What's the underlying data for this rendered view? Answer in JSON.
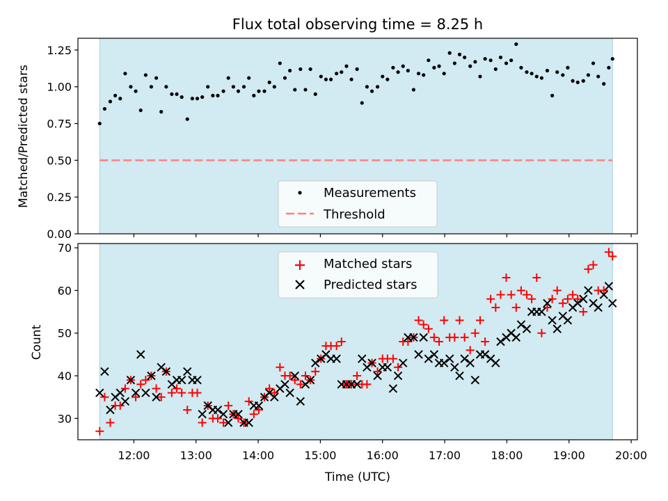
{
  "chart_data": [
    {
      "type": "scatter",
      "title": "Flux total observing time = 8.25 h",
      "xlabel": "",
      "ylabel": "Matched/Predicted stars",
      "ylim": [
        0,
        1.33
      ],
      "yticks": [
        "0.00",
        "0.25",
        "0.50",
        "0.75",
        "1.00",
        "1.25"
      ],
      "shaded_span_utc_hours": [
        11.45,
        19.7
      ],
      "shade_color": "#add8e6",
      "legend_position": "lower center",
      "series": [
        {
          "name": "Measurements",
          "marker": "dot",
          "color": "#000000",
          "x": [
            11.45,
            11.53,
            11.62,
            11.7,
            11.78,
            11.86,
            11.95,
            12.03,
            12.11,
            12.19,
            12.28,
            12.36,
            12.44,
            12.52,
            12.61,
            12.69,
            12.77,
            12.86,
            12.94,
            13.02,
            13.1,
            13.19,
            13.27,
            13.35,
            13.44,
            13.52,
            13.6,
            13.68,
            13.77,
            13.85,
            13.93,
            14.01,
            14.1,
            14.18,
            14.26,
            14.35,
            14.43,
            14.51,
            14.59,
            14.68,
            14.76,
            14.84,
            14.92,
            15.01,
            15.09,
            15.17,
            15.26,
            15.34,
            15.42,
            15.5,
            15.59,
            15.67,
            15.75,
            15.83,
            15.92,
            16.0,
            16.08,
            16.17,
            16.25,
            16.33,
            16.41,
            16.5,
            16.58,
            16.66,
            16.74,
            16.83,
            16.91,
            16.99,
            17.08,
            17.16,
            17.24,
            17.32,
            17.41,
            17.49,
            17.57,
            17.65,
            17.74,
            17.82,
            17.9,
            17.99,
            18.07,
            18.15,
            18.23,
            18.32,
            18.4,
            18.48,
            18.56,
            18.65,
            18.73,
            18.81,
            18.9,
            18.98,
            19.06,
            19.14,
            19.23,
            19.31,
            19.39,
            19.47,
            19.56,
            19.64,
            19.7
          ],
          "y": [
            0.75,
            0.85,
            0.9,
            0.94,
            0.92,
            1.09,
            1.0,
            0.97,
            0.84,
            1.08,
            1.0,
            1.06,
            0.83,
            1.0,
            0.95,
            0.95,
            0.93,
            0.78,
            0.92,
            0.92,
            0.93,
            1.0,
            0.94,
            0.94,
            0.97,
            1.06,
            1.0,
            0.97,
            1.0,
            1.06,
            0.94,
            0.97,
            0.97,
            1.03,
            1.0,
            1.16,
            1.06,
            1.11,
            0.98,
            1.12,
            0.98,
            1.12,
            0.95,
            1.07,
            1.05,
            1.05,
            1.09,
            1.1,
            1.14,
            1.05,
            1.12,
            0.89,
            1.0,
            0.97,
            1.0,
            1.07,
            1.05,
            1.13,
            1.1,
            1.14,
            1.11,
            0.98,
            1.09,
            1.08,
            1.18,
            1.13,
            1.14,
            1.09,
            1.23,
            1.16,
            1.22,
            1.2,
            1.14,
            1.17,
            1.07,
            1.19,
            1.18,
            1.12,
            1.2,
            1.16,
            1.18,
            1.29,
            1.13,
            1.1,
            1.09,
            1.07,
            1.06,
            1.11,
            0.94,
            1.1,
            1.08,
            1.13,
            1.04,
            1.03,
            1.04,
            1.08,
            1.16,
            1.07,
            1.02,
            1.13,
            1.19
          ]
        },
        {
          "name": "Threshold",
          "marker": "dashed-line",
          "color": "#ff8080",
          "x": [
            11.45,
            19.7
          ],
          "y": [
            0.5,
            0.5
          ]
        }
      ]
    },
    {
      "type": "scatter",
      "title": "",
      "xlabel": "Time (UTC)",
      "ylabel": "Count",
      "ylim": [
        25,
        71
      ],
      "yticks": [
        "30",
        "40",
        "50",
        "60",
        "70"
      ],
      "xlim_utc_hours": [
        11.1,
        20.1
      ],
      "xticks": [
        "12:00",
        "13:00",
        "14:00",
        "15:00",
        "16:00",
        "17:00",
        "18:00",
        "19:00",
        "20:00"
      ],
      "xtick_hours": [
        12,
        13,
        14,
        15,
        16,
        17,
        18,
        19,
        20
      ],
      "shaded_span_utc_hours": [
        11.45,
        19.7
      ],
      "shade_color": "#add8e6",
      "legend_position": "upper center",
      "series": [
        {
          "name": "Matched stars",
          "marker": "plus",
          "color": "#ff0000",
          "x": [
            11.45,
            11.53,
            11.62,
            11.7,
            11.78,
            11.86,
            11.95,
            12.03,
            12.11,
            12.19,
            12.28,
            12.36,
            12.44,
            12.52,
            12.61,
            12.69,
            12.77,
            12.86,
            12.94,
            13.02,
            13.1,
            13.19,
            13.27,
            13.35,
            13.44,
            13.52,
            13.6,
            13.68,
            13.77,
            13.85,
            13.93,
            14.01,
            14.1,
            14.18,
            14.26,
            14.35,
            14.43,
            14.51,
            14.59,
            14.68,
            14.76,
            14.84,
            14.92,
            15.01,
            15.09,
            15.17,
            15.26,
            15.34,
            15.42,
            15.5,
            15.59,
            15.67,
            15.75,
            15.83,
            15.92,
            16.0,
            16.08,
            16.17,
            16.25,
            16.33,
            16.41,
            16.5,
            16.58,
            16.66,
            16.74,
            16.83,
            16.91,
            16.99,
            17.08,
            17.16,
            17.24,
            17.32,
            17.41,
            17.49,
            17.57,
            17.65,
            17.74,
            17.82,
            17.9,
            17.99,
            18.07,
            18.15,
            18.23,
            18.32,
            18.4,
            18.48,
            18.56,
            18.65,
            18.73,
            18.81,
            18.9,
            18.98,
            19.06,
            19.14,
            19.23,
            19.31,
            19.39,
            19.47,
            19.56,
            19.64,
            19.7
          ],
          "y": [
            27,
            35,
            29,
            33,
            33,
            37,
            39,
            35,
            38,
            39,
            40,
            37,
            35,
            41,
            36,
            37,
            36,
            32,
            36,
            36,
            29,
            33,
            30,
            30,
            29,
            33,
            31,
            30,
            29,
            34,
            31,
            32,
            35,
            37,
            36,
            42,
            40,
            40,
            39,
            38,
            40,
            39,
            41,
            44,
            47,
            47,
            47,
            48,
            38,
            38,
            40,
            38,
            38,
            43,
            41,
            44,
            44,
            44,
            42,
            48,
            48,
            49,
            53,
            52,
            51,
            49,
            48,
            53,
            49,
            49,
            53,
            49,
            46,
            50,
            53,
            48,
            58,
            56,
            59,
            63,
            59,
            56,
            60,
            59,
            58,
            63,
            50,
            56,
            58,
            60,
            57,
            58,
            59,
            58,
            55,
            65,
            66,
            60,
            60,
            69,
            68
          ]
        },
        {
          "name": "Predicted stars",
          "marker": "x",
          "color": "#000000",
          "x": [
            11.45,
            11.53,
            11.62,
            11.7,
            11.78,
            11.86,
            11.95,
            12.03,
            12.11,
            12.19,
            12.28,
            12.36,
            12.44,
            12.52,
            12.61,
            12.69,
            12.77,
            12.86,
            12.94,
            13.02,
            13.1,
            13.19,
            13.27,
            13.35,
            13.44,
            13.52,
            13.6,
            13.68,
            13.77,
            13.85,
            13.93,
            14.01,
            14.1,
            14.18,
            14.26,
            14.35,
            14.43,
            14.51,
            14.59,
            14.68,
            14.76,
            14.84,
            14.92,
            15.01,
            15.09,
            15.17,
            15.26,
            15.34,
            15.42,
            15.5,
            15.59,
            15.67,
            15.75,
            15.83,
            15.92,
            16.0,
            16.08,
            16.17,
            16.25,
            16.33,
            16.41,
            16.5,
            16.58,
            16.66,
            16.74,
            16.83,
            16.91,
            16.99,
            17.08,
            17.16,
            17.24,
            17.32,
            17.41,
            17.49,
            17.57,
            17.65,
            17.74,
            17.82,
            17.9,
            17.99,
            18.07,
            18.15,
            18.23,
            18.32,
            18.4,
            18.48,
            18.56,
            18.65,
            18.73,
            18.81,
            18.9,
            18.98,
            19.06,
            19.14,
            19.23,
            19.31,
            19.39,
            19.47,
            19.56,
            19.64,
            19.7
          ],
          "y": [
            36,
            41,
            32,
            35,
            36,
            34,
            39,
            36,
            45,
            36,
            40,
            35,
            42,
            41,
            38,
            39,
            39,
            41,
            39,
            39,
            31,
            33,
            32,
            32,
            31,
            29,
            31,
            31,
            29,
            29,
            33,
            33,
            35,
            36,
            35,
            37,
            38,
            36,
            40,
            34,
            38,
            39,
            43,
            44,
            45,
            44,
            44,
            38,
            38,
            38,
            38,
            44,
            42,
            43,
            40,
            42,
            42,
            37,
            40,
            43,
            49,
            49,
            45,
            49,
            44,
            45,
            43,
            43,
            44,
            42,
            40,
            44,
            43,
            39,
            45,
            45,
            44,
            43,
            48,
            49,
            50,
            49,
            52,
            51,
            55,
            55,
            55,
            57,
            53,
            51,
            54,
            53,
            56,
            57,
            58,
            60,
            57,
            56,
            59,
            61,
            57
          ]
        }
      ]
    }
  ]
}
